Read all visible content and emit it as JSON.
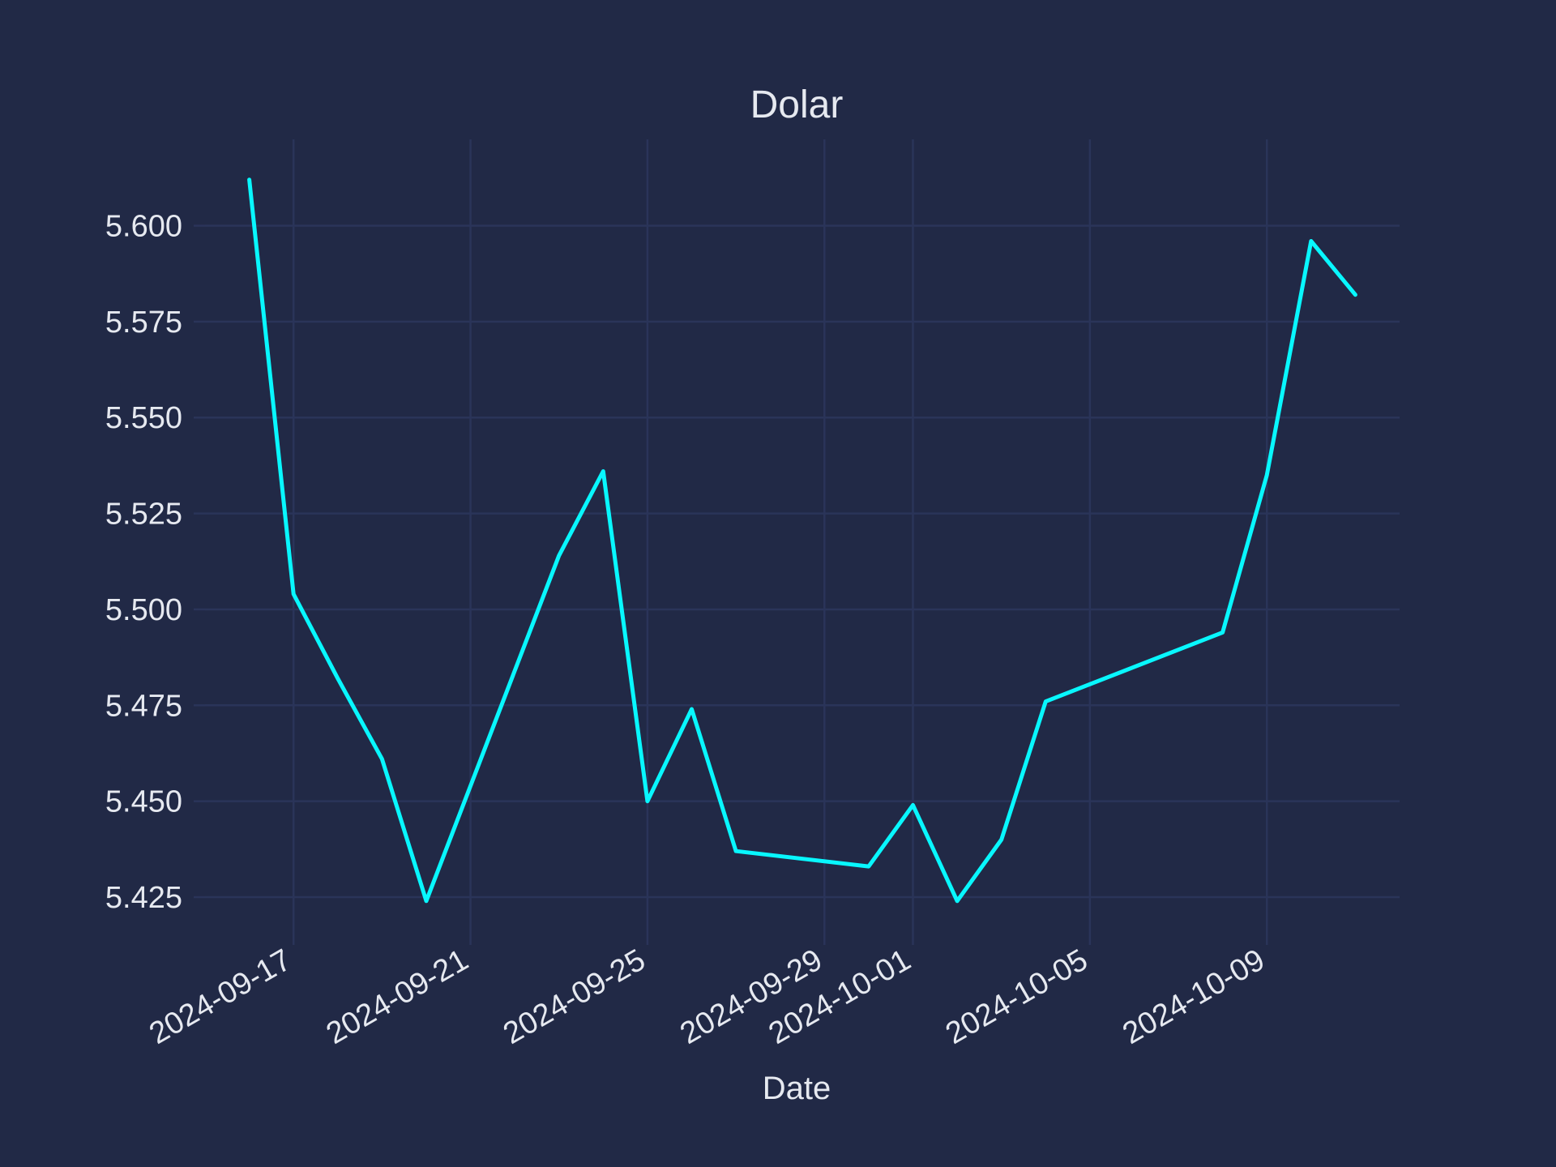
{
  "chart_data": {
    "type": "line",
    "title": "Dolar",
    "xlabel": "Date",
    "ylabel": "",
    "x": [
      "2024-09-16",
      "2024-09-17",
      "2024-09-18",
      "2024-09-19",
      "2024-09-20",
      "2024-09-23",
      "2024-09-24",
      "2024-09-25",
      "2024-09-26",
      "2024-09-27",
      "2024-09-30",
      "2024-10-01",
      "2024-10-02",
      "2024-10-03",
      "2024-10-04",
      "2024-10-08",
      "2024-10-09",
      "2024-10-10",
      "2024-10-11"
    ],
    "series": [
      {
        "values": [
          5.612,
          5.504,
          5.482,
          5.461,
          5.424,
          5.514,
          5.536,
          5.45,
          5.474,
          5.437,
          5.433,
          5.449,
          5.424,
          5.44,
          5.476,
          5.494,
          5.535,
          5.596,
          5.582
        ],
        "color": "#08F7FE"
      }
    ],
    "x_ticks": [
      "2024-09-17",
      "2024-09-21",
      "2024-09-25",
      "2024-09-29",
      "2024-10-01",
      "2024-10-05",
      "2024-10-09"
    ],
    "y_ticks": [
      "5.425",
      "5.450",
      "5.475",
      "5.500",
      "5.525",
      "5.550",
      "5.575",
      "5.600"
    ],
    "xlim": [
      "2024-09-15",
      "2024-10-12"
    ],
    "ylim": [
      5.4155,
      5.6225
    ],
    "grid": true,
    "background": "#212946",
    "grid_color": "#2A3459",
    "text_color": "#E6E9F0"
  }
}
